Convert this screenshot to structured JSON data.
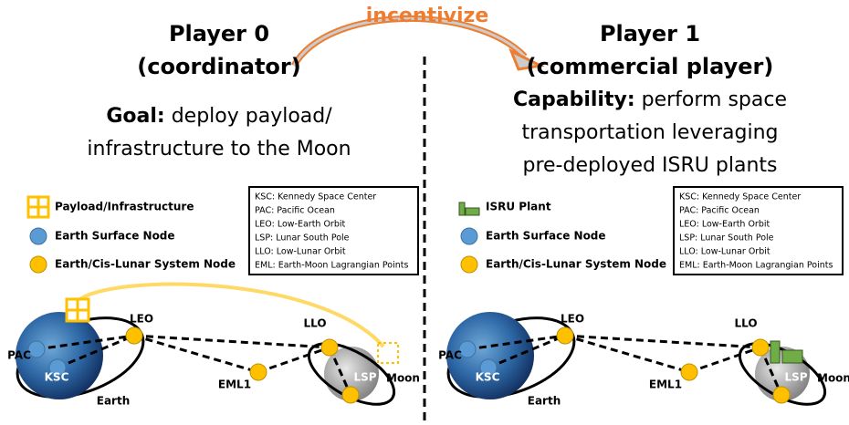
{
  "incentive": "incentivize",
  "players": [
    {
      "title": "Player 0",
      "role": "(coordinator)",
      "description_label": "Goal:",
      "description_lines": [
        "deploy payload/",
        "infrastructure to the Moon"
      ],
      "legend": [
        "Payload/Infrastructure",
        "Earth Surface Node",
        "Earth/Cis-Lunar System Node"
      ],
      "abbreviations": [
        "KSC: Kennedy Space Center",
        "PAC: Pacific Ocean",
        "LEO: Low-Earth Orbit",
        "LSP: Lunar South Pole",
        "LLO: Low-Lunar Orbit",
        "EML: Earth-Moon Lagrangian Points"
      ],
      "nodes": {
        "leo": "LEO",
        "pac": "PAC",
        "ksc": "KSC",
        "earth": "Earth",
        "eml1": "EML1",
        "llo": "LLO",
        "lsp": "LSP",
        "moon": "Moon"
      }
    },
    {
      "title": "Player 1",
      "role": "(commercial player)",
      "description_label": "Capability:",
      "description_lines": [
        "perform space",
        "transportation leveraging",
        "pre-deployed ISRU plants"
      ],
      "legend": [
        "ISRU Plant",
        "Earth Surface Node",
        "Earth/Cis-Lunar System Node"
      ],
      "abbreviations": [
        "KSC: Kennedy Space Center",
        "PAC: Pacific Ocean",
        "LEO: Low-Earth Orbit",
        "LSP: Lunar South Pole",
        "LLO: Low-Lunar Orbit",
        "EML: Earth-Moon Lagrangian Points"
      ],
      "nodes": {
        "leo": "LEO",
        "pac": "PAC",
        "ksc": "KSC",
        "earth": "Earth",
        "eml1": "EML1",
        "llo": "LLO",
        "lsp": "LSP",
        "moon": "Moon"
      }
    }
  ]
}
